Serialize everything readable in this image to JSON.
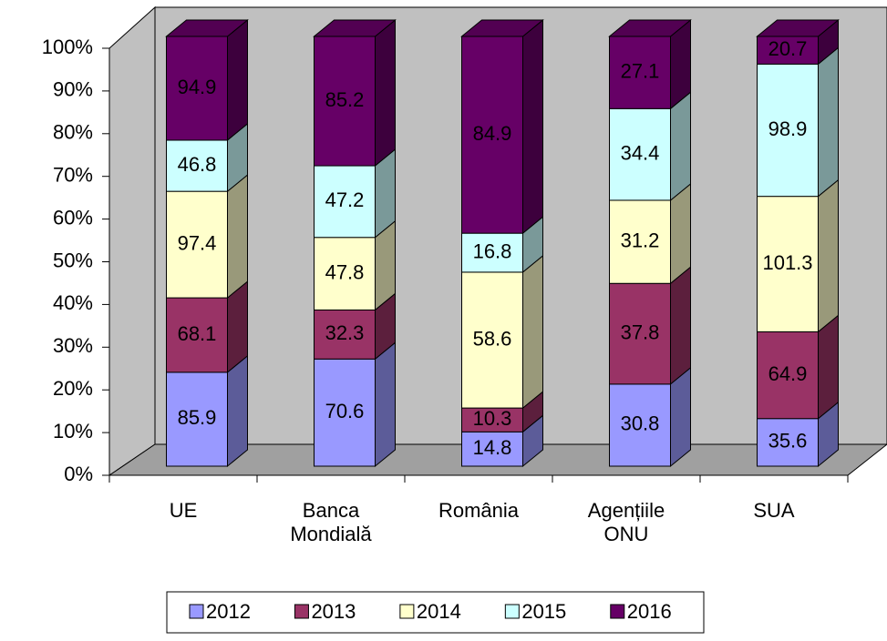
{
  "chart_data": {
    "type": "bar",
    "stacking": "percent",
    "three_d": true,
    "categories": [
      "UE",
      "Banca Mondială",
      "România",
      "Agențiile ONU",
      "SUA"
    ],
    "series": [
      {
        "name": "2012",
        "color": "#9999ff",
        "values": [
          85.9,
          70.6,
          14.8,
          30.8,
          35.6
        ]
      },
      {
        "name": "2013",
        "color": "#993366",
        "values": [
          68.1,
          32.3,
          10.3,
          37.8,
          64.9
        ]
      },
      {
        "name": "2014",
        "color": "#ffffcc",
        "values": [
          97.4,
          47.8,
          58.6,
          31.2,
          101.3
        ]
      },
      {
        "name": "2015",
        "color": "#ccffff",
        "values": [
          46.8,
          47.2,
          16.8,
          34.4,
          98.9
        ]
      },
      {
        "name": "2016",
        "color": "#660066",
        "values": [
          94.9,
          85.2,
          84.9,
          27.1,
          20.7
        ]
      }
    ],
    "ylim": [
      0,
      100
    ],
    "yticks": [
      {
        "value": 0,
        "label": "0%"
      },
      {
        "value": 10,
        "label": "10%"
      },
      {
        "value": 20,
        "label": "20%"
      },
      {
        "value": 30,
        "label": "30%"
      },
      {
        "value": 40,
        "label": "40%"
      },
      {
        "value": 50,
        "label": "50%"
      },
      {
        "value": 60,
        "label": "60%"
      },
      {
        "value": 70,
        "label": "70%"
      },
      {
        "value": 80,
        "label": "80%"
      },
      {
        "value": 90,
        "label": "90%"
      },
      {
        "value": 100,
        "label": "100%"
      }
    ],
    "legend": "bottom"
  }
}
